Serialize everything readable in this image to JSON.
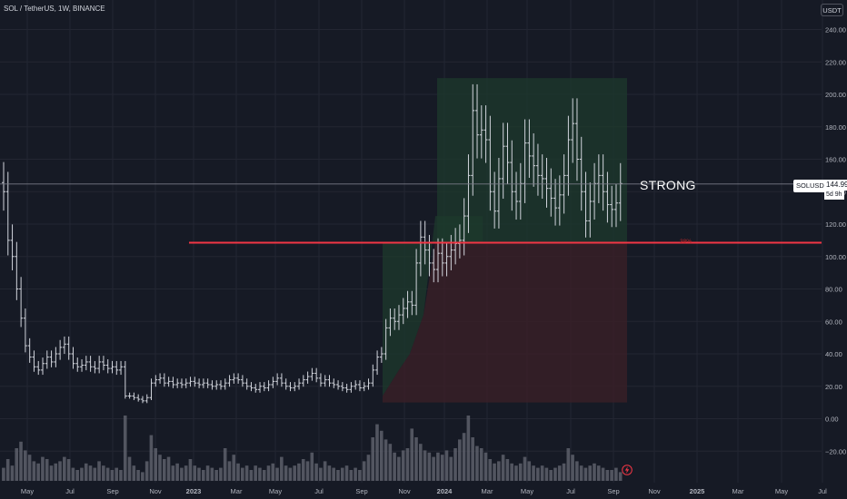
{
  "header": {
    "symbol_title": "SOL / TetherUS, 1W, BINANCE",
    "currency": "USDT"
  },
  "price_tag": {
    "symbol": "SOLUSDT",
    "price": "144.99",
    "countdown": "5d 9h"
  },
  "annotations": {
    "strong_label": "STRONG",
    "level_label": "38%"
  },
  "colors": {
    "background": "#161a25",
    "grid": "#232632",
    "candle": "#d1d4dc",
    "volume": "#5d606b",
    "resistance_line": "#f23645",
    "profit_zone": "#1e3a2c",
    "loss_zone": "#3a1f27",
    "axis_text": "#b2b5be"
  },
  "icons": {
    "flash": "lightning-flash-icon"
  },
  "chart_data": {
    "type": "candlestick",
    "title": "SOL / TetherUS, 1W, BINANCE",
    "y_unit": "USDT",
    "ylim": [
      -30,
      255
    ],
    "y_ticks": [
      240,
      220,
      200,
      180,
      160,
      140,
      120,
      100,
      80,
      60,
      40,
      20,
      0,
      -20
    ],
    "y_tick_labels": [
      "240.00",
      "220.00",
      "200.00",
      "180.00",
      "160.00",
      "140.00",
      "120.00",
      "100.00",
      "80.00",
      "60.00",
      "40.00",
      "20.00",
      "0.00",
      "−20.00"
    ],
    "x_axis_labels": [
      "May",
      "Jul",
      "Sep",
      "Nov",
      "2023",
      "Mar",
      "May",
      "Jul",
      "Sep",
      "Nov",
      "2024",
      "Mar",
      "May",
      "Jul",
      "Sep",
      "Nov",
      "2025",
      "Mar",
      "May",
      "Jul"
    ],
    "grid": true,
    "last_price": 144.99,
    "resistance_level": 108.5,
    "position_zones": {
      "profit": {
        "from_date": "2023-10",
        "to_date": "2024-09",
        "top": 210,
        "bottom": 108.5
      },
      "loss": {
        "from_date": "2023-10",
        "to_date": "2024-09",
        "top": 108.5,
        "bottom": 10
      }
    },
    "weekly_close": [
      140,
      110,
      100,
      80,
      62,
      45,
      38,
      32,
      30,
      34,
      38,
      35,
      40,
      44,
      46,
      40,
      34,
      32,
      33,
      35,
      32,
      31,
      35,
      33,
      31,
      32,
      30,
      32,
      14,
      14,
      13,
      12,
      11,
      13,
      22,
      24,
      25,
      22,
      23,
      21,
      22,
      21,
      22,
      23,
      22,
      21,
      22,
      21,
      20,
      21,
      20,
      22,
      24,
      25,
      24,
      22,
      20,
      19,
      18,
      20,
      19,
      21,
      23,
      25,
      22,
      20,
      19,
      20,
      22,
      24,
      26,
      28,
      25,
      22,
      24,
      22,
      21,
      20,
      19,
      18,
      20,
      21,
      19,
      20,
      22,
      30,
      38,
      40,
      56,
      62,
      60,
      64,
      68,
      72,
      70,
      96,
      112,
      104,
      96,
      92,
      102,
      96,
      100,
      104,
      108,
      110,
      125,
      150,
      190,
      175,
      178,
      172,
      140,
      128,
      148,
      168,
      158,
      140,
      134,
      145,
      170,
      162,
      156,
      150,
      148,
      142,
      136,
      130,
      138,
      150,
      172,
      182,
      160,
      140,
      122,
      134,
      145,
      150,
      140,
      132,
      129,
      133,
      145
    ],
    "weekly_volume": [
      12,
      20,
      14,
      30,
      36,
      28,
      24,
      18,
      16,
      22,
      20,
      14,
      16,
      18,
      22,
      20,
      12,
      10,
      12,
      16,
      14,
      12,
      18,
      14,
      12,
      10,
      12,
      10,
      60,
      22,
      14,
      10,
      8,
      18,
      42,
      30,
      24,
      20,
      22,
      14,
      16,
      12,
      14,
      20,
      14,
      12,
      10,
      14,
      12,
      10,
      12,
      30,
      18,
      24,
      16,
      12,
      14,
      10,
      14,
      12,
      10,
      14,
      16,
      12,
      22,
      14,
      12,
      14,
      16,
      20,
      18,
      26,
      16,
      12,
      18,
      14,
      12,
      10,
      12,
      14,
      10,
      12,
      10,
      18,
      24,
      40,
      52,
      46,
      38,
      34,
      26,
      22,
      28,
      30,
      48,
      40,
      34,
      28,
      26,
      22,
      26,
      24,
      28,
      22,
      30,
      38,
      44,
      60,
      40,
      32,
      30,
      26,
      20,
      16,
      18,
      24,
      20,
      16,
      14,
      16,
      22,
      18,
      14,
      12,
      14,
      12,
      10,
      12,
      14,
      16,
      30,
      24,
      18,
      14,
      12,
      14,
      16,
      14,
      12,
      10,
      10,
      12,
      8
    ]
  }
}
